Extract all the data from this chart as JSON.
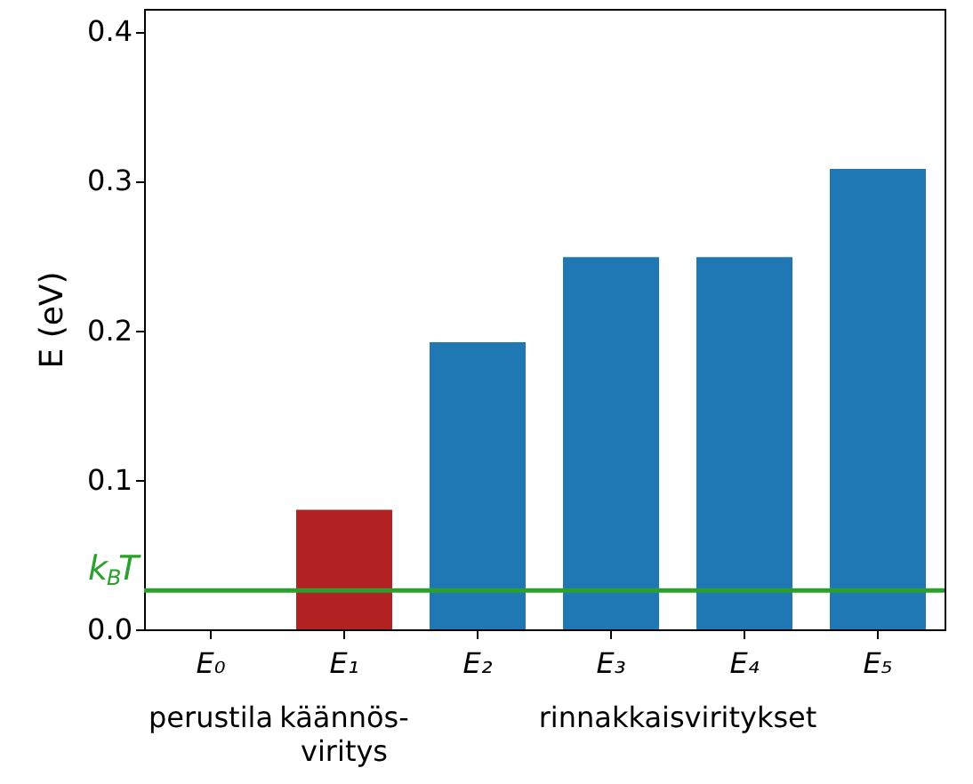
{
  "chart_data": {
    "type": "bar",
    "ylabel": "E (eV)",
    "categories": [
      "E₀",
      "E₁",
      "E₂",
      "E₃",
      "E₄",
      "E₅"
    ],
    "values": [
      0,
      0.08,
      0.192,
      0.249,
      0.249,
      0.308
    ],
    "colors": [
      "#1f77b4",
      "#b22222",
      "#1f77b4",
      "#1f77b4",
      "#1f77b4",
      "#1f77b4"
    ],
    "ylim": [
      0,
      0.415
    ],
    "yticks": [
      {
        "value": 0,
        "label": "0.0"
      },
      {
        "value": 0.1,
        "label": "0.1"
      },
      {
        "value": 0.2,
        "label": "0.2"
      },
      {
        "value": 0.3,
        "label": "0.3"
      },
      {
        "value": 0.4,
        "label": "0.4"
      }
    ],
    "ref_lines": [
      {
        "axis": "y",
        "value": 0.026,
        "label": "k$_{B}$T",
        "color": "#2ca02c"
      }
    ],
    "annotations": [
      "perustila",
      "käännös-\nviritys",
      "rinnakkaisviritykset"
    ],
    "grid": false
  }
}
